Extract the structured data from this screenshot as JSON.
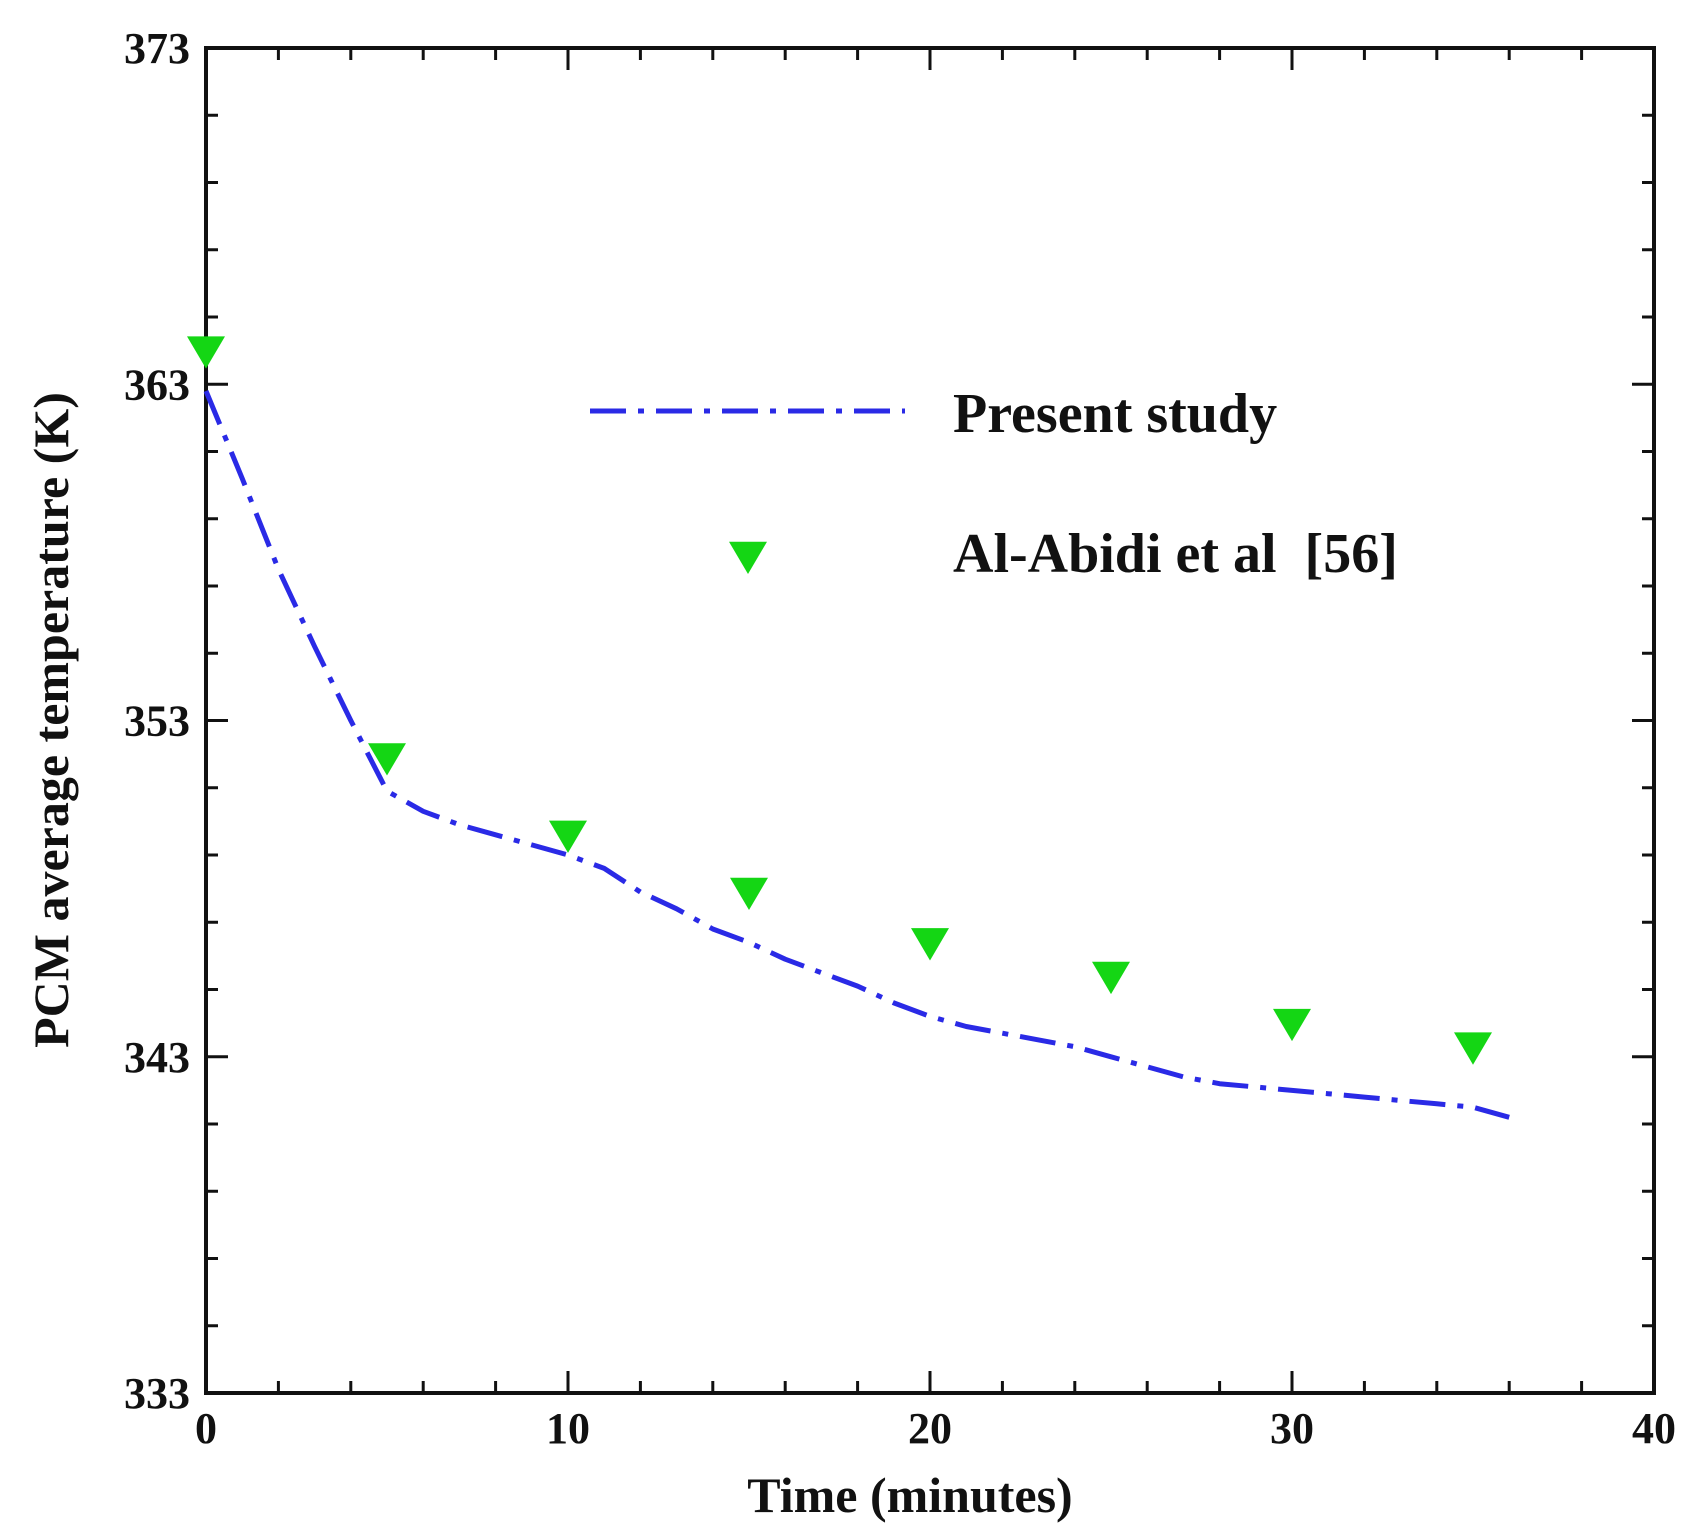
{
  "chart_data": {
    "type": "line",
    "xlabel": "Time (minutes)",
    "ylabel": "PCM average temperature (K)",
    "xlim": [
      0,
      40
    ],
    "ylim": [
      333,
      373
    ],
    "xticks": [
      0,
      10,
      20,
      30,
      40
    ],
    "yticks": [
      333,
      343,
      353,
      363,
      373
    ],
    "x_minor_step": 2,
    "y_minor_step": 2,
    "grid": false,
    "legend_position": "upper-right",
    "series": [
      {
        "name": "Present study",
        "kind": "line",
        "style": "dash-dot",
        "color": "#2a2ae6",
        "x": [
          0,
          1,
          2,
          3,
          4,
          5,
          6,
          7,
          8,
          9,
          10,
          11,
          12,
          13,
          14,
          15,
          16,
          17,
          18,
          19,
          20,
          21,
          22,
          23,
          24,
          25,
          26,
          27,
          28,
          29,
          30,
          31,
          32,
          33,
          34,
          35,
          36
        ],
        "y": [
          362.8,
          360.2,
          357.5,
          355.2,
          353.0,
          350.9,
          350.3,
          349.9,
          349.6,
          349.3,
          349.0,
          348.6,
          347.9,
          347.4,
          346.8,
          346.4,
          345.9,
          345.5,
          345.1,
          344.6,
          344.2,
          343.9,
          343.7,
          343.5,
          343.3,
          343.0,
          342.7,
          342.4,
          342.2,
          342.1,
          342.0,
          341.9,
          341.8,
          341.7,
          341.6,
          341.5,
          341.2
        ]
      },
      {
        "name": "Al-Abidi et al  [56]",
        "kind": "marker",
        "marker": "triangle-down",
        "color": "#14d614",
        "x": [
          0,
          5,
          10,
          15,
          20,
          25,
          30,
          35
        ],
        "y": [
          364.0,
          351.9,
          349.6,
          347.9,
          346.4,
          345.4,
          344.0,
          343.3
        ]
      }
    ]
  }
}
